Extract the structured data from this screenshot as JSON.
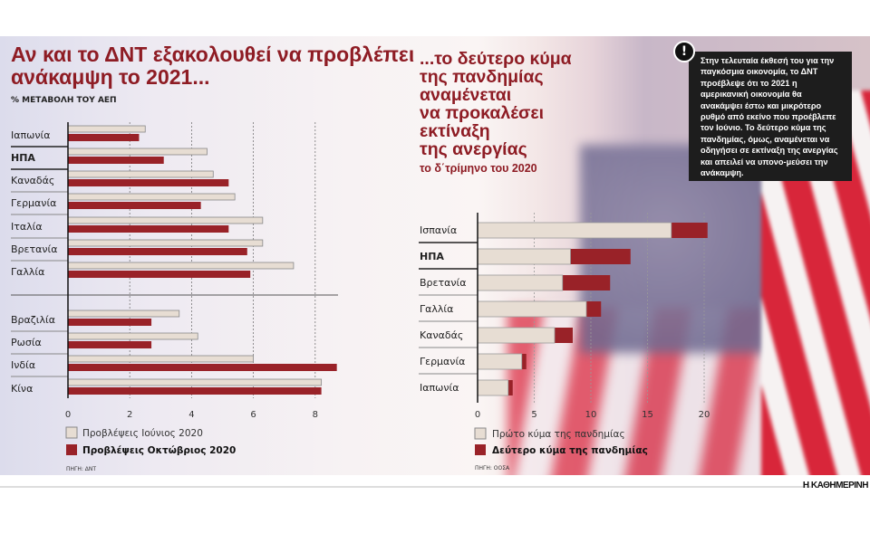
{
  "colors": {
    "june": "#e7ddd3",
    "october": "#992228",
    "title": "#8e1c24",
    "callout_bg": "#1d1d1d"
  },
  "left": {
    "title_line1": "Αν και το ΔΝΤ εξακολουθεί να προβλέπει",
    "title_line2": "ανάκαμψη το 2021...",
    "subtitle": "% ΜΕΤΑΒΟΛΗ ΤΟΥ ΑΕΠ",
    "source": "ΠΗΓΗ: ΔΝΤ"
  },
  "right": {
    "title_lines": [
      "...το δεύτερο κύμα",
      "της πανδημίας",
      "αναμένεται",
      "να προκαλέσει",
      "εκτίναξη",
      "της ανεργίας"
    ],
    "subtitle": "το δ΄τρίμηνο του 2020",
    "source": "ΠΗΓΗ: ΟΟΣΑ"
  },
  "callout": {
    "icon": "exclamation-icon",
    "bang": "!",
    "text": "Στην τελευταία έκθεσή του για την παγκόσμια οικονομία, το ΔΝΤ προέβλεψε ότι το 2021 η αμερικανική οικονομία θα ανακάμψει έστω και μικρότερο ρυθμό από εκείνο που προέβλεπε τον Ιούνιο. Το δεύτερο κύμα της πανδημίας, όμως, αναμένεται να οδηγήσει σε εκτίναξη της ανεργίας και απειλεί να υπονο-μεύσει την ανάκαμψη."
  },
  "footer": {
    "brand": "Η ΚΑΘΗΜΕΡΙΝΗ"
  },
  "chart_data": [
    {
      "type": "bar",
      "orientation": "horizontal",
      "title": "Αν και το ΔΝΤ εξακολουθεί να προβλέπει ανάκαμψη το 2021...",
      "ylabel": "% ΜΕΤΑΒΟΛΗ ΤΟΥ ΑΕΠ",
      "categories": [
        "Ιαπωνία",
        "ΗΠΑ",
        "Καναδάς",
        "Γερμανία",
        "Ιταλία",
        "Βρετανία",
        "Γαλλία",
        "Βραζιλία",
        "Ρωσία",
        "Ινδία",
        "Κίνα"
      ],
      "highlight": "ΗΠΑ",
      "xlim": [
        0,
        9
      ],
      "xticks": [
        "0",
        "2",
        "4",
        "6",
        "8"
      ],
      "grid": true,
      "legend_position": "bottom",
      "series": [
        {
          "name": "Προβλέψεις Ιούνιος 2020",
          "values": [
            2.5,
            4.5,
            4.7,
            5.4,
            6.3,
            6.3,
            7.3,
            3.6,
            4.2,
            6.0,
            8.2
          ]
        },
        {
          "name": "Προβλέψεις Οκτώβριος 2020",
          "values": [
            2.3,
            3.1,
            5.2,
            4.3,
            5.2,
            5.8,
            5.9,
            2.7,
            2.7,
            8.7,
            8.2
          ]
        }
      ]
    },
    {
      "type": "bar",
      "orientation": "horizontal",
      "stacked_overlay": true,
      "title": "...το δεύτερο κύμα της πανδημίας αναμένεται να προκαλέσει εκτίναξη της ανεργίας",
      "subtitle": "το δ΄τρίμηνο του 2020",
      "categories": [
        "Ισπανία",
        "ΗΠΑ",
        "Βρετανία",
        "Γαλλία",
        "Καναδάς",
        "Γερμανία",
        "Ιαπωνία"
      ],
      "highlight": "ΗΠΑ",
      "xlim": [
        0,
        21
      ],
      "xticks": [
        "0",
        "5",
        "10",
        "15",
        "20"
      ],
      "grid": true,
      "legend_position": "bottom",
      "series": [
        {
          "name": "Πρώτο κύμα της πανδημίας",
          "values": [
            17.1,
            8.2,
            7.5,
            9.6,
            6.8,
            3.9,
            2.7
          ]
        },
        {
          "name": "Δεύτερο κύμα της πανδημίας",
          "values": [
            20.3,
            13.5,
            11.7,
            10.9,
            8.4,
            4.3,
            3.1
          ]
        }
      ]
    }
  ]
}
